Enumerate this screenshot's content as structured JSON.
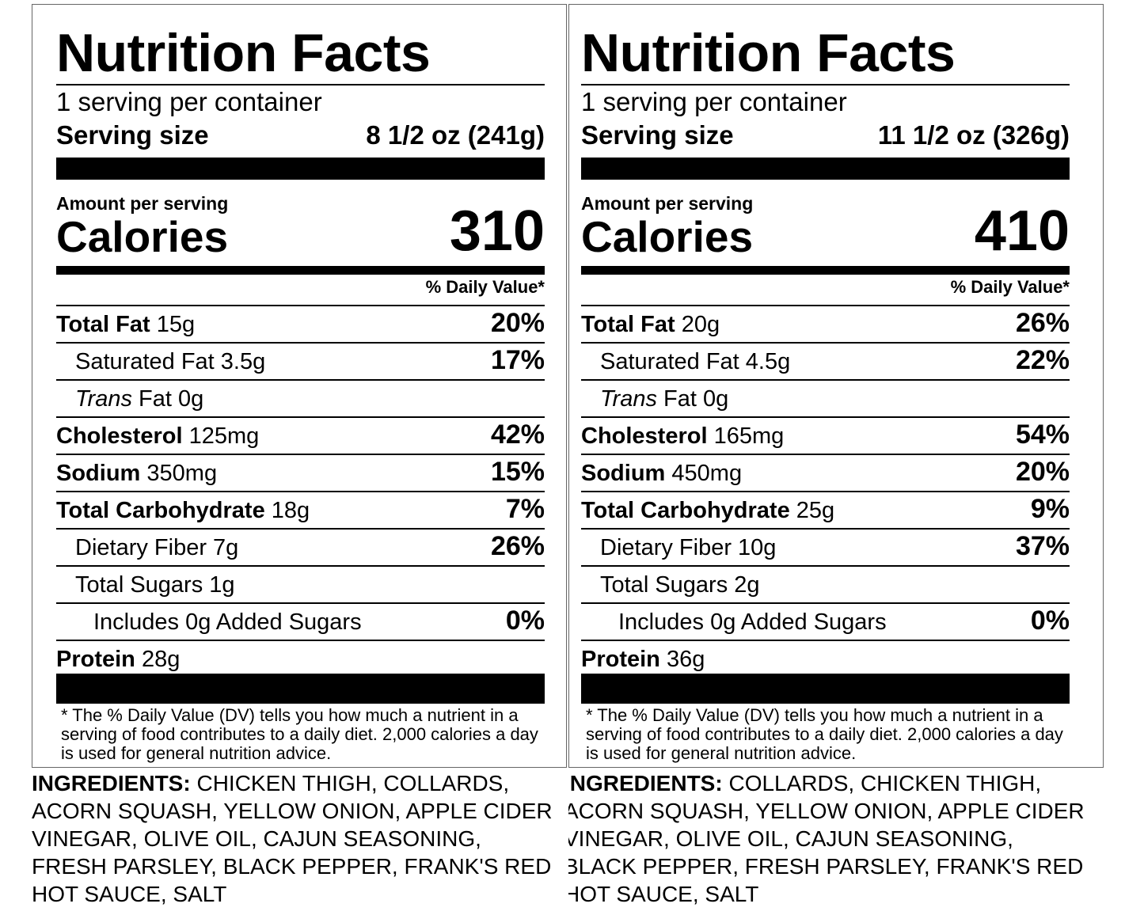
{
  "panels": [
    {
      "title": "Nutrition Facts",
      "servings_per_container": "1 serving per container",
      "serving_size_label": "Serving size",
      "serving_size_value": "8 1/2 oz (241g)",
      "amount_per_serving": "Amount per serving",
      "calories_label": "Calories",
      "calories_value": "310",
      "daily_value_header": "% Daily Value*",
      "nutrients": [
        {
          "bold": "Total Fat",
          "italic": "",
          "rest": " 15g",
          "dv": "20%",
          "indent": 0
        },
        {
          "bold": "",
          "italic": "",
          "rest": "Saturated Fat 3.5g",
          "dv": "17%",
          "indent": 1
        },
        {
          "bold": "",
          "italic": "Trans",
          "rest": " Fat 0g",
          "dv": "",
          "indent": 1
        },
        {
          "bold": "Cholesterol",
          "italic": "",
          "rest": " 125mg",
          "dv": "42%",
          "indent": 0
        },
        {
          "bold": "Sodium",
          "italic": "",
          "rest": " 350mg",
          "dv": "15%",
          "indent": 0
        },
        {
          "bold": "Total Carbohydrate",
          "italic": "",
          "rest": " 18g",
          "dv": "7%",
          "indent": 0
        },
        {
          "bold": "",
          "italic": "",
          "rest": "Dietary Fiber 7g",
          "dv": "26%",
          "indent": 1
        },
        {
          "bold": "",
          "italic": "",
          "rest": "Total Sugars 1g",
          "dv": "",
          "indent": 1
        },
        {
          "bold": "",
          "italic": "",
          "rest": "Includes 0g Added Sugars",
          "dv": "0%",
          "indent": 2
        },
        {
          "bold": "Protein",
          "italic": "",
          "rest": " 28g",
          "dv": "",
          "indent": 0
        }
      ],
      "footnote": "* The % Daily Value (DV) tells you how much a nutrient in a serving of food contributes to a daily diet. 2,000 calories a day is used for general nutrition advice.",
      "ingredients_label": "INGREDIENTS:",
      "ingredients_text": " CHICKEN THIGH, COLLARDS, ACORN SQUASH, YELLOW ONION, APPLE CIDER VINEGAR, OLIVE OIL, CAJUN SEASONING, FRESH PARSLEY, BLACK PEPPER, FRANK'S RED HOT SAUCE, SALT"
    },
    {
      "title": "Nutrition Facts",
      "servings_per_container": "1 serving per container",
      "serving_size_label": "Serving size",
      "serving_size_value": "11 1/2 oz (326g)",
      "amount_per_serving": "Amount per serving",
      "calories_label": "Calories",
      "calories_value": "410",
      "daily_value_header": "% Daily Value*",
      "nutrients": [
        {
          "bold": "Total Fat",
          "italic": "",
          "rest": " 20g",
          "dv": "26%",
          "indent": 0
        },
        {
          "bold": "",
          "italic": "",
          "rest": "Saturated Fat 4.5g",
          "dv": "22%",
          "indent": 1
        },
        {
          "bold": "",
          "italic": "Trans",
          "rest": " Fat 0g",
          "dv": "",
          "indent": 1
        },
        {
          "bold": "Cholesterol",
          "italic": "",
          "rest": " 165mg",
          "dv": "54%",
          "indent": 0
        },
        {
          "bold": "Sodium",
          "italic": "",
          "rest": " 450mg",
          "dv": "20%",
          "indent": 0
        },
        {
          "bold": "Total Carbohydrate",
          "italic": "",
          "rest": " 25g",
          "dv": "9%",
          "indent": 0
        },
        {
          "bold": "",
          "italic": "",
          "rest": "Dietary Fiber 10g",
          "dv": "37%",
          "indent": 1
        },
        {
          "bold": "",
          "italic": "",
          "rest": "Total Sugars 2g",
          "dv": "",
          "indent": 1
        },
        {
          "bold": "",
          "italic": "",
          "rest": "Includes 0g Added Sugars",
          "dv": "0%",
          "indent": 2
        },
        {
          "bold": "Protein",
          "italic": "",
          "rest": " 36g",
          "dv": "",
          "indent": 0
        }
      ],
      "footnote": "* The % Daily Value (DV) tells you how much a nutrient in a serving of food contributes to a daily diet. 2,000 calories a day is used for general nutrition advice.",
      "ingredients_label": "INGREDIENTS:",
      "ingredients_text": " COLLARDS, CHICKEN THIGH, ACORN SQUASH, YELLOW ONION, APPLE CIDER VINEGAR, OLIVE OIL, CAJUN SEASONING, BLACK PEPPER, FRESH PARSLEY, FRANK'S RED HOT SAUCE, SALT"
    }
  ]
}
